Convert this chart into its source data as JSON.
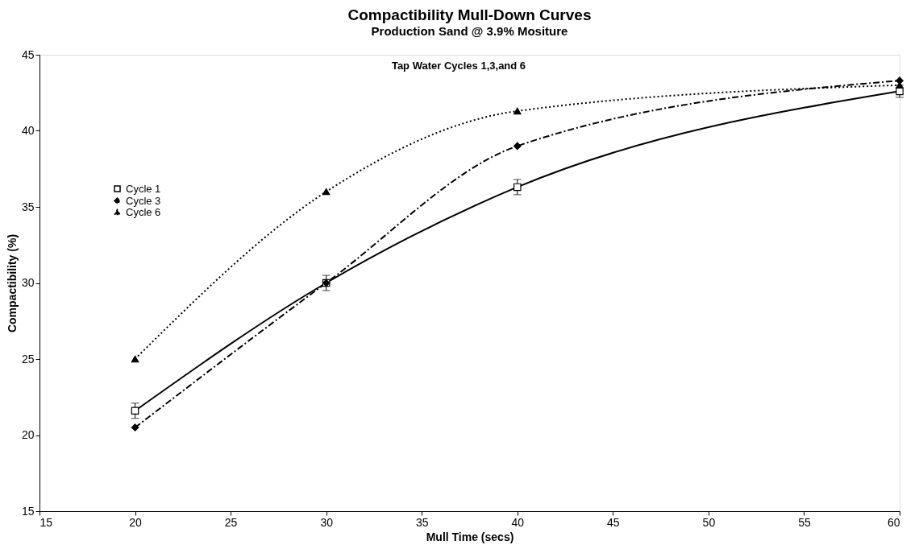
{
  "chart_data": {
    "type": "line",
    "title": "Compactibility Mull-Down Curves",
    "subtitle": "Production Sand @ 3.9% Mositure",
    "annotations": [
      "Tap Water Cycles 1,3,and 6"
    ],
    "xlabel": "Mull Time (secs)",
    "ylabel": "Compactibility (%)",
    "x": [
      20,
      30,
      40,
      60
    ],
    "series": [
      {
        "name": "Cycle 1",
        "color": "#000000",
        "values": [
          21.6,
          30.0,
          36.3,
          42.6
        ],
        "errors": [
          0.5,
          0.5,
          0.5,
          0.4
        ],
        "marker": "square",
        "line_style": "solid"
      },
      {
        "name": "Cycle 3",
        "color": "#000000",
        "values": [
          20.5,
          30.0,
          39.0,
          43.3
        ],
        "marker": "diamond",
        "line_style": "dashed"
      },
      {
        "name": "Cycle 6",
        "color": "#000000",
        "values": [
          25.0,
          36.0,
          41.3,
          43.0
        ],
        "marker": "triangle",
        "line_style": "dotted"
      }
    ],
    "xlim": [
      15,
      60
    ],
    "xticks": [
      15,
      20,
      25,
      30,
      35,
      40,
      45,
      50,
      55,
      60
    ],
    "ylim": [
      15,
      45
    ],
    "yticks": [
      15,
      20,
      25,
      30,
      35,
      40,
      45
    ],
    "grid": false,
    "legend": "left"
  }
}
